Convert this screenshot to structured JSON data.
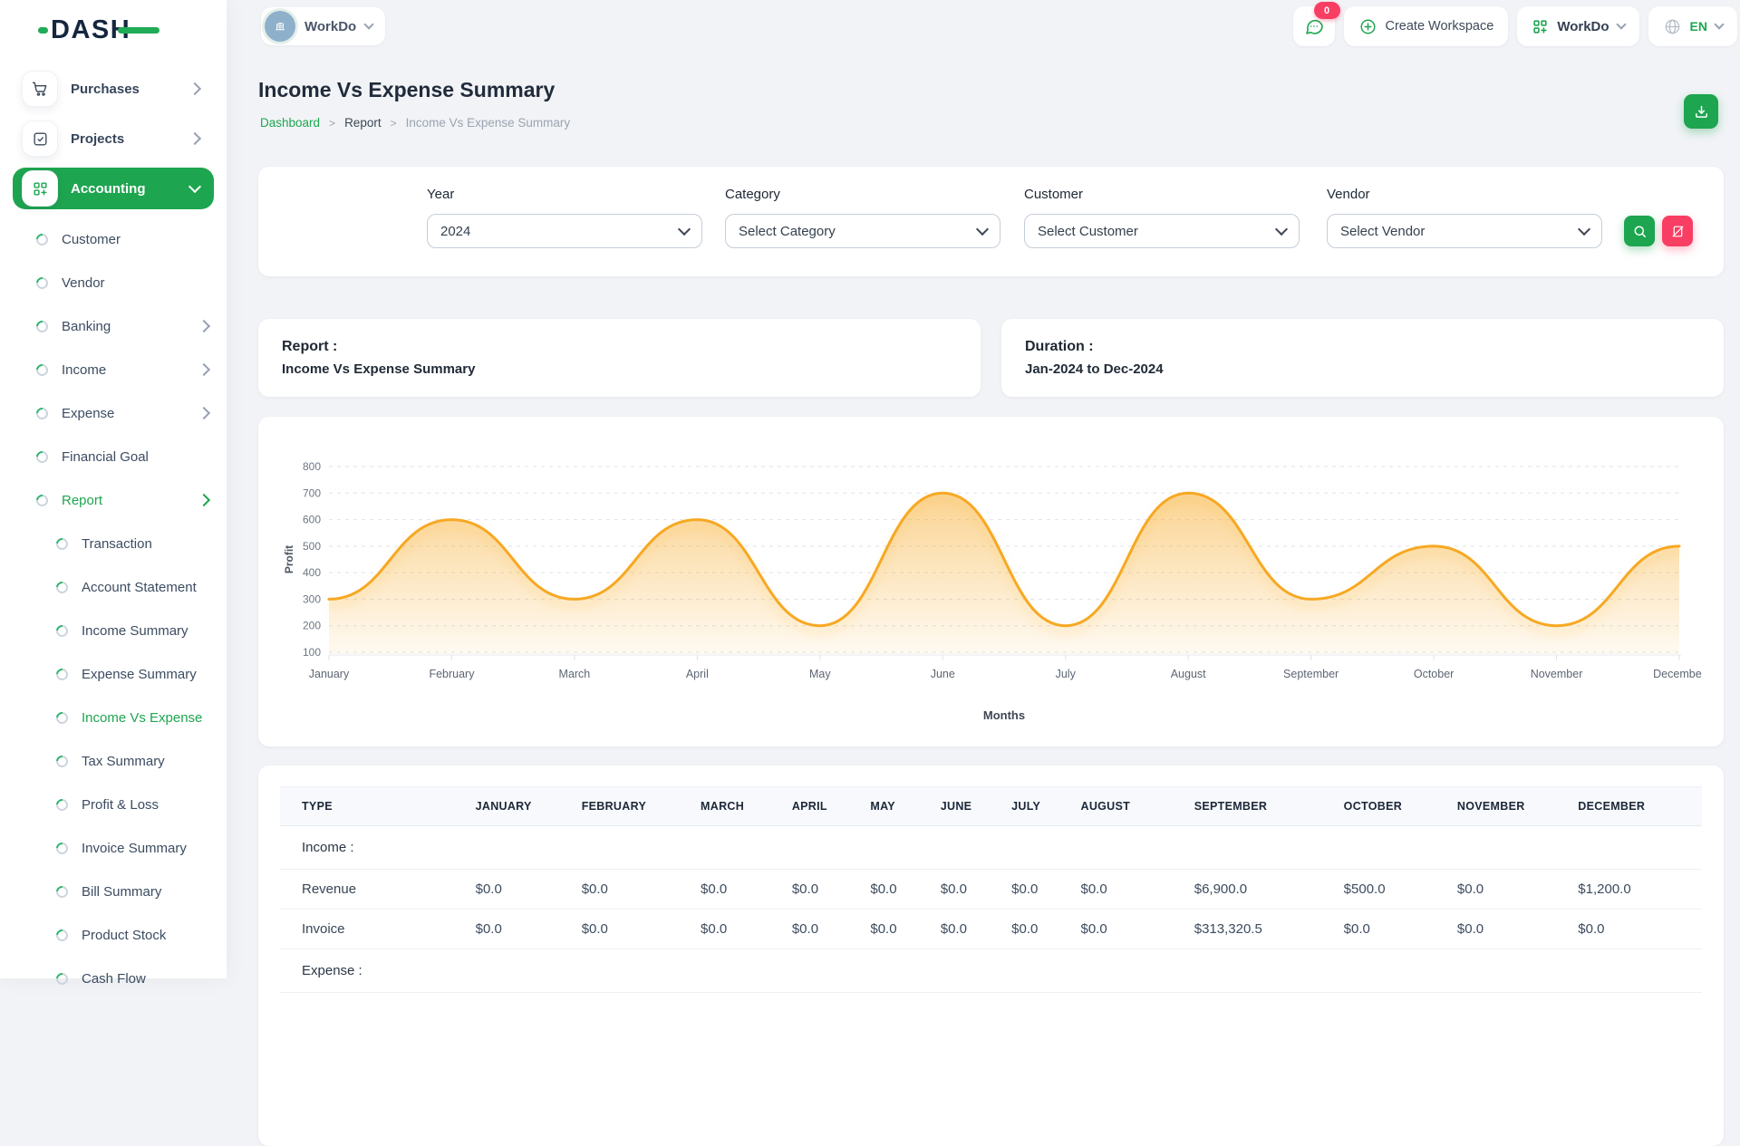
{
  "brand": {
    "logo": "DASH"
  },
  "topbar": {
    "workspace_name": "WorkDo",
    "messages_badge": "0",
    "create_workspace_label": "Create Workspace",
    "app_dropdown_label": "WorkDo",
    "language": "EN"
  },
  "sidebar": {
    "menu": [
      {
        "label": "Purchases"
      },
      {
        "label": "Projects"
      },
      {
        "label": "Accounting"
      }
    ],
    "accounting_items": [
      "Customer",
      "Vendor",
      "Banking",
      "Income",
      "Expense",
      "Financial Goal",
      "Report"
    ],
    "expandable_items": [
      "Banking",
      "Income",
      "Expense"
    ],
    "open_section": "Report",
    "report_items": [
      "Transaction",
      "Account Statement",
      "Income Summary",
      "Expense Summary",
      "Income Vs Expense",
      "Tax Summary",
      "Profit & Loss",
      "Invoice Summary",
      "Bill Summary",
      "Product Stock",
      "Cash Flow"
    ],
    "active_subitem": "Income Vs Expense"
  },
  "page": {
    "title": "Income Vs Expense Summary",
    "breadcrumb": [
      "Dashboard",
      "Report",
      "Income Vs Expense Summary"
    ],
    "breadcrumb_separator": ">"
  },
  "filters": {
    "year": {
      "label": "Year",
      "value": "2024"
    },
    "category": {
      "label": "Category",
      "value": "Select Category"
    },
    "customer": {
      "label": "Customer",
      "value": "Select Customer"
    },
    "vendor": {
      "label": "Vendor",
      "value": "Select Vendor"
    }
  },
  "summary_cards": {
    "report": {
      "title": "Report :",
      "value": "Income Vs Expense Summary"
    },
    "duration": {
      "title": "Duration :",
      "value": "Jan-2024 to Dec-2024"
    }
  },
  "chart_data": {
    "type": "area",
    "x": [
      "January",
      "February",
      "March",
      "April",
      "May",
      "June",
      "July",
      "August",
      "September",
      "October",
      "November",
      "December"
    ],
    "series": [
      {
        "name": "Profit",
        "values": [
          300,
          600,
          300,
          600,
          200,
          700,
          200,
          700,
          300,
          500,
          200,
          500
        ]
      }
    ],
    "xlabel": "Months",
    "ylabel": "Profit",
    "ylim": [
      100,
      800
    ],
    "yticks": [
      100,
      200,
      300,
      400,
      500,
      600,
      700,
      800
    ],
    "grid": "dashed-horizontal",
    "legend": "none",
    "line_color": "#f7a823"
  },
  "table": {
    "headers": [
      "TYPE",
      "JANUARY",
      "FEBRUARY",
      "MARCH",
      "APRIL",
      "MAY",
      "JUNE",
      "JULY",
      "AUGUST",
      "SEPTEMBER",
      "OCTOBER",
      "NOVEMBER",
      "DECEMBER"
    ],
    "groups": [
      {
        "label": "Income :",
        "rows": [
          {
            "type": "Revenue",
            "values": [
              "$0.0",
              "$0.0",
              "$0.0",
              "$0.0",
              "$0.0",
              "$0.0",
              "$0.0",
              "$0.0",
              "$6,900.0",
              "$500.0",
              "$0.0",
              "$1,200.0"
            ]
          },
          {
            "type": "Invoice",
            "values": [
              "$0.0",
              "$0.0",
              "$0.0",
              "$0.0",
              "$0.0",
              "$0.0",
              "$0.0",
              "$0.0",
              "$313,320.5",
              "$0.0",
              "$0.0",
              "$0.0"
            ]
          }
        ]
      },
      {
        "label": "Expense :",
        "rows": []
      }
    ]
  },
  "colors": {
    "primary_green": "#1ea550",
    "pink": "#f93e63",
    "chart_orange": "#f7a823",
    "navy": "#15273f"
  }
}
